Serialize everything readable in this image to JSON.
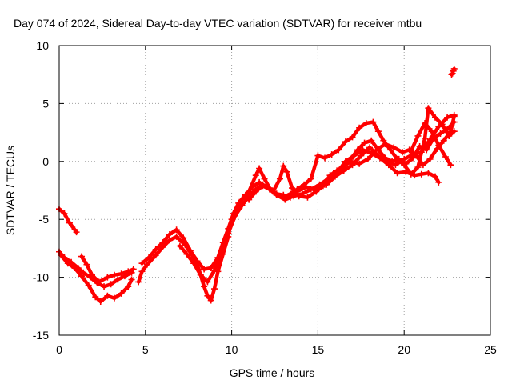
{
  "chart_data": {
    "type": "scatter",
    "title": "Day 074 of 2024, Sidereal Day-to-day VTEC variation (SDTVAR) for receiver mtbu",
    "xlabel": "GPS time / hours",
    "ylabel": "SDTVAR / TECUs",
    "xlim": [
      0,
      25
    ],
    "ylim": [
      -15,
      10
    ],
    "xticks": [
      0,
      5,
      10,
      15,
      20,
      25
    ],
    "yticks": [
      -15,
      -10,
      -5,
      0,
      5,
      10
    ],
    "grid": true,
    "marker": "+",
    "color": "#ff0000",
    "series": [
      {
        "points": [
          [
            0.0,
            -4.1
          ],
          [
            0.3,
            -4.5
          ],
          [
            0.6,
            -5.3
          ],
          [
            0.9,
            -5.9
          ],
          [
            1.0,
            -6.1
          ]
        ]
      },
      {
        "points": [
          [
            0.0,
            -7.8
          ],
          [
            0.3,
            -8.3
          ],
          [
            0.7,
            -8.7
          ],
          [
            1.1,
            -9.2
          ],
          [
            1.4,
            -9.6
          ],
          [
            1.8,
            -10.0
          ],
          [
            2.2,
            -10.5
          ],
          [
            2.6,
            -10.8
          ],
          [
            3.0,
            -10.6
          ],
          [
            3.4,
            -10.2
          ],
          [
            3.8,
            -9.9
          ],
          [
            4.2,
            -9.6
          ]
        ]
      },
      {
        "points": [
          [
            0.1,
            -8.1
          ],
          [
            0.5,
            -8.8
          ],
          [
            0.9,
            -9.2
          ],
          [
            1.3,
            -9.9
          ],
          [
            1.7,
            -10.7
          ],
          [
            2.1,
            -11.7
          ],
          [
            2.4,
            -12.1
          ],
          [
            2.8,
            -11.6
          ],
          [
            3.2,
            -11.8
          ],
          [
            3.6,
            -11.4
          ],
          [
            4.0,
            -10.8
          ],
          [
            4.2,
            -10.2
          ]
        ]
      },
      {
        "points": [
          [
            1.3,
            -8.2
          ],
          [
            1.6,
            -8.9
          ],
          [
            1.9,
            -9.8
          ],
          [
            2.3,
            -10.4
          ],
          [
            2.8,
            -10.0
          ],
          [
            3.2,
            -9.8
          ],
          [
            3.6,
            -9.7
          ],
          [
            4.0,
            -9.5
          ],
          [
            4.3,
            -9.3
          ]
        ]
      },
      {
        "points": [
          [
            4.6,
            -10.4
          ],
          [
            4.8,
            -9.5
          ],
          [
            5.1,
            -8.9
          ],
          [
            5.6,
            -8.1
          ],
          [
            6.0,
            -7.4
          ],
          [
            6.4,
            -6.8
          ],
          [
            6.8,
            -6.5
          ],
          [
            7.3,
            -7.2
          ],
          [
            7.8,
            -8.3
          ],
          [
            8.1,
            -9.3
          ],
          [
            8.4,
            -10.8
          ],
          [
            8.6,
            -11.6
          ],
          [
            8.8,
            -12.0
          ],
          [
            9.0,
            -11.0
          ],
          [
            9.2,
            -9.5
          ],
          [
            9.5,
            -8.0
          ],
          [
            9.8,
            -6.5
          ],
          [
            10.0,
            -5.0
          ],
          [
            10.3,
            -4.0
          ],
          [
            10.6,
            -3.3
          ],
          [
            11.0,
            -2.6
          ],
          [
            11.4,
            -1.2
          ],
          [
            11.6,
            -0.6
          ],
          [
            11.9,
            -1.5
          ],
          [
            12.2,
            -2.3
          ],
          [
            12.6,
            -2.8
          ],
          [
            13.0,
            -2.9
          ],
          [
            13.4,
            -3.1
          ],
          [
            13.8,
            -2.6
          ],
          [
            14.3,
            -2.2
          ],
          [
            14.9,
            -2.5
          ],
          [
            15.3,
            -2.1
          ],
          [
            15.7,
            -1.2
          ],
          [
            16.1,
            -0.8
          ],
          [
            16.5,
            -0.5
          ],
          [
            16.9,
            0.2
          ],
          [
            17.3,
            1.0
          ],
          [
            17.7,
            1.6
          ],
          [
            18.1,
            1.8
          ],
          [
            18.5,
            1.0
          ],
          [
            18.9,
            0.3
          ],
          [
            19.3,
            0.0
          ],
          [
            19.7,
            0.2
          ],
          [
            20.1,
            -0.2
          ],
          [
            20.5,
            0.3
          ],
          [
            20.9,
            1.3
          ],
          [
            21.3,
            1.0
          ],
          [
            21.7,
            2.0
          ],
          [
            22.1,
            2.4
          ],
          [
            22.5,
            2.8
          ],
          [
            22.9,
            3.4
          ]
        ]
      },
      {
        "points": [
          [
            4.8,
            -8.8
          ],
          [
            5.2,
            -8.3
          ],
          [
            5.6,
            -7.6
          ],
          [
            6.0,
            -7.0
          ],
          [
            6.4,
            -6.3
          ],
          [
            6.8,
            -5.9
          ],
          [
            7.2,
            -6.6
          ],
          [
            7.6,
            -7.7
          ],
          [
            8.0,
            -8.6
          ],
          [
            8.4,
            -9.3
          ],
          [
            8.8,
            -9.2
          ],
          [
            9.2,
            -8.3
          ],
          [
            9.5,
            -7.0
          ],
          [
            9.8,
            -5.8
          ],
          [
            10.1,
            -4.5
          ],
          [
            10.4,
            -3.6
          ],
          [
            10.8,
            -2.9
          ],
          [
            11.2,
            -2.2
          ],
          [
            11.6,
            -1.8
          ],
          [
            12.0,
            -2.2
          ],
          [
            12.4,
            -2.6
          ],
          [
            12.8,
            -1.5
          ],
          [
            13.0,
            -0.4
          ],
          [
            13.2,
            -0.9
          ],
          [
            13.5,
            -2.3
          ],
          [
            13.9,
            -3.0
          ],
          [
            14.4,
            -3.1
          ],
          [
            14.9,
            -2.6
          ],
          [
            15.4,
            -2.0
          ],
          [
            15.9,
            -1.0
          ],
          [
            16.4,
            -0.5
          ],
          [
            16.9,
            0.0
          ],
          [
            17.4,
            -0.2
          ],
          [
            17.9,
            0.2
          ],
          [
            18.4,
            1.0
          ],
          [
            18.9,
            1.5
          ],
          [
            19.4,
            1.2
          ],
          [
            19.9,
            0.8
          ],
          [
            20.3,
            1.0
          ],
          [
            20.7,
            0.5
          ],
          [
            21.1,
            -0.3
          ],
          [
            21.5,
            0.2
          ],
          [
            21.9,
            1.1
          ],
          [
            22.3,
            1.8
          ],
          [
            22.7,
            2.6
          ],
          [
            22.9,
            3.9
          ]
        ]
      },
      {
        "points": [
          [
            7.0,
            -7.3
          ],
          [
            7.4,
            -8.0
          ],
          [
            7.8,
            -8.8
          ],
          [
            8.2,
            -9.8
          ],
          [
            8.6,
            -10.4
          ],
          [
            9.0,
            -9.4
          ],
          [
            9.4,
            -8.0
          ],
          [
            9.8,
            -6.2
          ],
          [
            10.2,
            -4.7
          ],
          [
            10.6,
            -3.8
          ],
          [
            11.0,
            -3.0
          ],
          [
            11.4,
            -2.4
          ],
          [
            11.8,
            -2.0
          ],
          [
            12.2,
            -2.4
          ],
          [
            12.6,
            -2.9
          ],
          [
            13.1,
            -3.3
          ],
          [
            13.6,
            -3.0
          ],
          [
            14.1,
            -2.8
          ],
          [
            14.6,
            -2.4
          ],
          [
            15.1,
            -2.0
          ],
          [
            15.6,
            -1.5
          ],
          [
            16.1,
            -1.0
          ],
          [
            16.6,
            0.0
          ],
          [
            17.1,
            0.5
          ],
          [
            17.6,
            1.0
          ],
          [
            18.1,
            0.7
          ],
          [
            18.6,
            0.3
          ],
          [
            19.1,
            -0.3
          ],
          [
            19.6,
            -1.0
          ],
          [
            20.1,
            -0.9
          ],
          [
            20.6,
            -1.2
          ],
          [
            21.0,
            -1.1
          ],
          [
            21.4,
            -1.0
          ],
          [
            21.8,
            -1.3
          ],
          [
            22.0,
            -1.8
          ]
        ]
      },
      {
        "points": [
          [
            11.0,
            -3.3
          ],
          [
            11.4,
            -2.6
          ],
          [
            11.8,
            -2.1
          ],
          [
            12.2,
            -2.4
          ],
          [
            12.6,
            -2.8
          ],
          [
            13.0,
            -3.1
          ],
          [
            13.4,
            -2.8
          ],
          [
            13.8,
            -2.4
          ],
          [
            14.2,
            -2.0
          ],
          [
            14.6,
            -1.5
          ],
          [
            15.0,
            0.5
          ],
          [
            15.4,
            0.3
          ],
          [
            15.8,
            0.6
          ],
          [
            16.2,
            1.0
          ],
          [
            16.6,
            1.7
          ],
          [
            17.0,
            2.1
          ],
          [
            17.4,
            2.9
          ],
          [
            17.8,
            3.3
          ],
          [
            18.2,
            3.4
          ],
          [
            18.5,
            2.6
          ],
          [
            18.8,
            1.8
          ],
          [
            19.2,
            1.0
          ],
          [
            19.6,
            0.2
          ],
          [
            20.0,
            -0.3
          ],
          [
            20.4,
            -1.1
          ],
          [
            20.8,
            -0.5
          ],
          [
            21.2,
            2.0
          ],
          [
            21.4,
            4.6
          ],
          [
            21.8,
            3.8
          ],
          [
            22.2,
            3.2
          ],
          [
            22.6,
            2.2
          ],
          [
            22.9,
            2.6
          ]
        ]
      },
      {
        "points": [
          [
            15.5,
            -2.0
          ],
          [
            16.0,
            -1.3
          ],
          [
            16.5,
            -0.8
          ],
          [
            17.0,
            -0.3
          ],
          [
            17.5,
            0.5
          ],
          [
            18.0,
            1.2
          ],
          [
            18.5,
            0.5
          ],
          [
            19.0,
            0.0
          ],
          [
            19.5,
            -0.3
          ],
          [
            20.0,
            0.2
          ],
          [
            20.5,
            0.6
          ],
          [
            21.0,
            0.8
          ],
          [
            21.5,
            1.9
          ],
          [
            22.0,
            3.0
          ],
          [
            22.5,
            3.8
          ],
          [
            22.9,
            4.0
          ]
        ]
      },
      {
        "points": [
          [
            20.4,
            0.9
          ],
          [
            20.8,
            2.2
          ],
          [
            21.2,
            3.3
          ],
          [
            21.6,
            2.6
          ],
          [
            22.0,
            1.4
          ],
          [
            22.4,
            0.4
          ],
          [
            22.7,
            -0.3
          ]
        ]
      },
      {
        "points": [
          [
            22.75,
            7.5
          ],
          [
            22.8,
            7.6
          ],
          [
            22.85,
            7.8
          ],
          [
            22.9,
            8.0
          ]
        ]
      }
    ]
  }
}
